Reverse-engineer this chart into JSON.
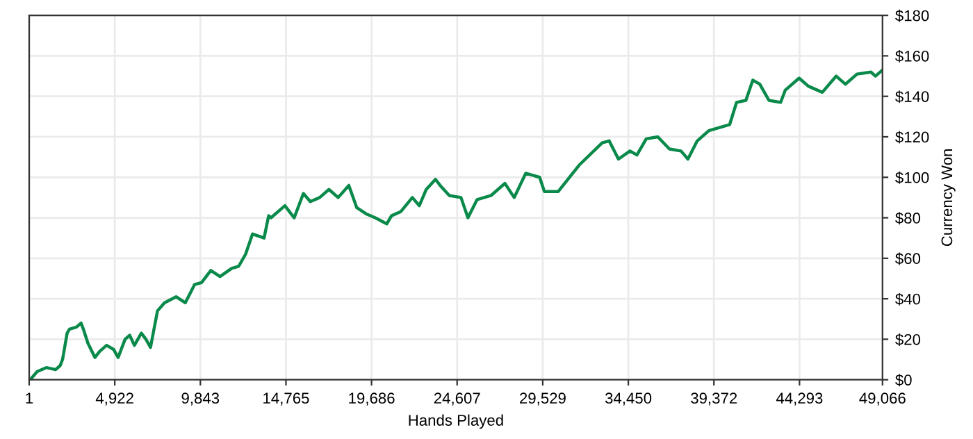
{
  "chart_data": {
    "type": "line",
    "xlabel": "Hands Played",
    "ylabel": "Currency Won",
    "x": [
      1,
      57,
      456,
      984,
      1519,
      1783,
      1919,
      2183,
      2318,
      2718,
      2982,
      3117,
      3381,
      3781,
      4052,
      4452,
      4852,
      5115,
      5515,
      5779,
      6050,
      6450,
      6713,
      6977,
      7377,
      7776,
      8448,
      8975,
      9510,
      9910,
      10445,
      10973,
      11644,
      12043,
      12443,
      12843,
      13506,
      13770,
      13905,
      14704,
      15239,
      15767,
      16167,
      16702,
      17237,
      17765,
      18380,
      18835,
      19363,
      19898,
      20561,
      20833,
      21361,
      22032,
      22432,
      22831,
      23358,
      23630,
      24158,
      24829,
      25229,
      25756,
      26555,
      27354,
      27889,
      28552,
      29351,
      29623,
      30422,
      31622,
      32948,
      33348,
      33883,
      34546,
      34945,
      35481,
      36144,
      36815,
      37479,
      37878,
      38413,
      39076,
      40275,
      40674,
      41210,
      41609,
      42009,
      42536,
      43207,
      43471,
      44270,
      44805,
      45604,
      46404,
      46930,
      47601,
      48400,
      48664,
      49066
    ],
    "series": [
      {
        "color": "#0a8a4a",
        "values": [
          0,
          0,
          4,
          6,
          5,
          7,
          10,
          23,
          25,
          26,
          28,
          25,
          18,
          11,
          14,
          17,
          15,
          11,
          20,
          22,
          17,
          23,
          20,
          16,
          34,
          38,
          41,
          38,
          47,
          48,
          54,
          51,
          55,
          56,
          62,
          72,
          70,
          81,
          80,
          86,
          80,
          92,
          88,
          90,
          94,
          90,
          96,
          85,
          82,
          80,
          77,
          81,
          83,
          90,
          86,
          94,
          99,
          96,
          91,
          90,
          80,
          89,
          91,
          97,
          90,
          102,
          100,
          93,
          93,
          106,
          117,
          118,
          109,
          113,
          111,
          119,
          120,
          114,
          113,
          109,
          118,
          123,
          126,
          137,
          138,
          148,
          146,
          138,
          137,
          143,
          149,
          145,
          142,
          150,
          146,
          151,
          152,
          150,
          153
        ]
      }
    ],
    "xlim": [
      1,
      49066
    ],
    "xticks": [
      1,
      {
        "value": 4922,
        "label": "4,922"
      },
      {
        "value": 9843,
        "label": "9,843"
      },
      {
        "value": 14765,
        "label": "14,765"
      },
      {
        "value": 19686,
        "label": "19,686"
      },
      {
        "value": 24607,
        "label": "24,607"
      },
      {
        "value": 29529,
        "label": "29,529"
      },
      {
        "value": 34450,
        "label": "34,450"
      },
      {
        "value": 39372,
        "label": "39,372"
      },
      {
        "value": 44293,
        "label": "44,293"
      },
      {
        "value": 49066,
        "label": "49,066"
      }
    ],
    "ylim": [
      0,
      180
    ],
    "yticks": [
      {
        "value": 0,
        "label": "$0"
      },
      {
        "value": 20,
        "label": "$20"
      },
      {
        "value": 40,
        "label": "$40"
      },
      {
        "value": 60,
        "label": "$60"
      },
      {
        "value": 80,
        "label": "$80"
      },
      {
        "value": 100,
        "label": "$100"
      },
      {
        "value": 120,
        "label": "$120"
      },
      {
        "value": 140,
        "label": "$140"
      },
      {
        "value": 160,
        "label": "$160"
      },
      {
        "value": 180,
        "label": "$180"
      }
    ],
    "grid": true,
    "marker": "none",
    "line_style": "solid"
  }
}
